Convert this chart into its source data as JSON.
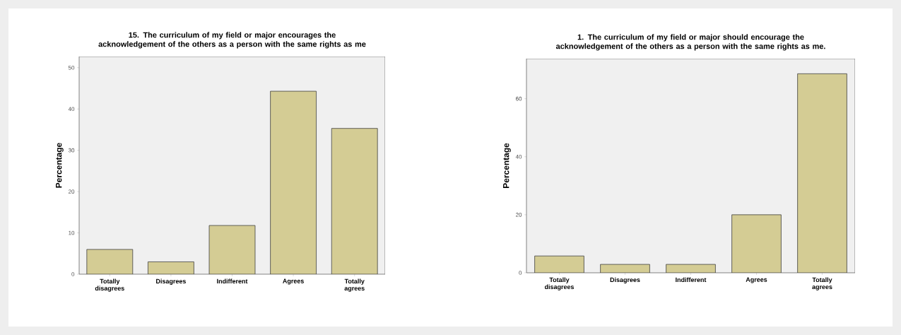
{
  "chart_data": [
    {
      "type": "bar",
      "title": "15. The curriculum of my field or major encourages the acknowledgement of the others as a person with the same rights as me",
      "ylabel": "Percentage",
      "categories": [
        "Totally disagrees",
        "Disagrees",
        "Indifferent",
        "Agrees",
        "Totally agrees"
      ],
      "values": [
        6.0,
        3.0,
        11.8,
        44.3,
        35.3
      ],
      "color": "#d4cc94",
      "ylim": [
        0,
        52.7
      ],
      "yticks": [
        0,
        10,
        20,
        30,
        40,
        50
      ]
    },
    {
      "type": "bar",
      "title": "1. The curriculum of my field or major should encourage the acknowledgement of the others as a person with the same rights as me.",
      "ylabel": "Percentage",
      "categories": [
        "Totally disagrees",
        "Disagrees",
        "Indifferent",
        "Agrees",
        "Totally agrees"
      ],
      "values": [
        5.8,
        2.9,
        2.9,
        20.0,
        68.6
      ],
      "color": "#d4cc94",
      "ylim": [
        0,
        73.8
      ],
      "yticks": [
        0,
        20,
        40,
        60
      ]
    }
  ]
}
